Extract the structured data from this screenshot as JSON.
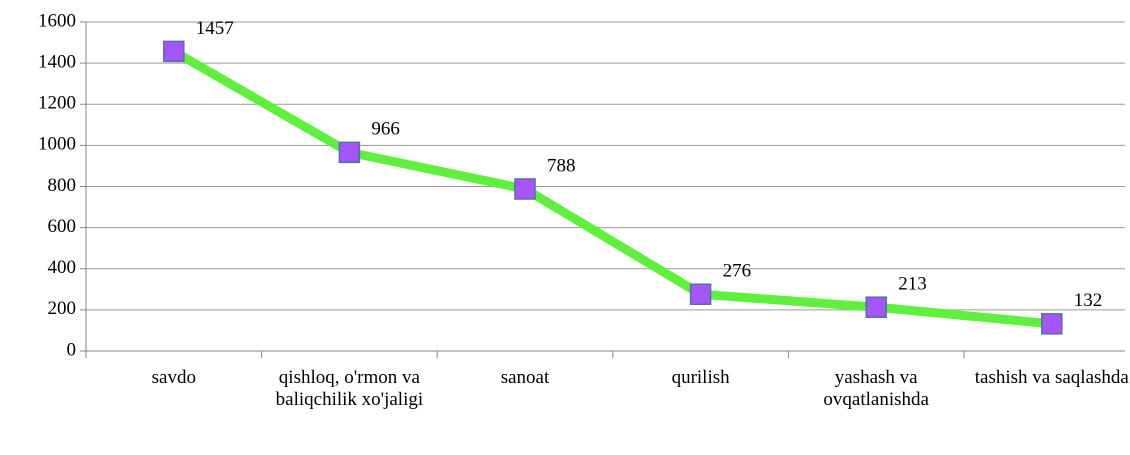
{
  "chart_data": {
    "type": "line",
    "categories": [
      "savdo",
      "qishloq, o'rmon va baliqchilik xo'jaligi",
      "sanoat",
      "qurilish",
      "yashash va ovqatlanishda",
      "tashish va saqlashda"
    ],
    "values": [
      1457,
      966,
      788,
      276,
      213,
      132
    ],
    "color": "#5ef03c",
    "marker_color": "#a855f7",
    "ylim": [
      0,
      1600
    ],
    "yticks": [
      0,
      200,
      400,
      600,
      800,
      1000,
      1200,
      1400,
      1600
    ],
    "grid": true
  }
}
